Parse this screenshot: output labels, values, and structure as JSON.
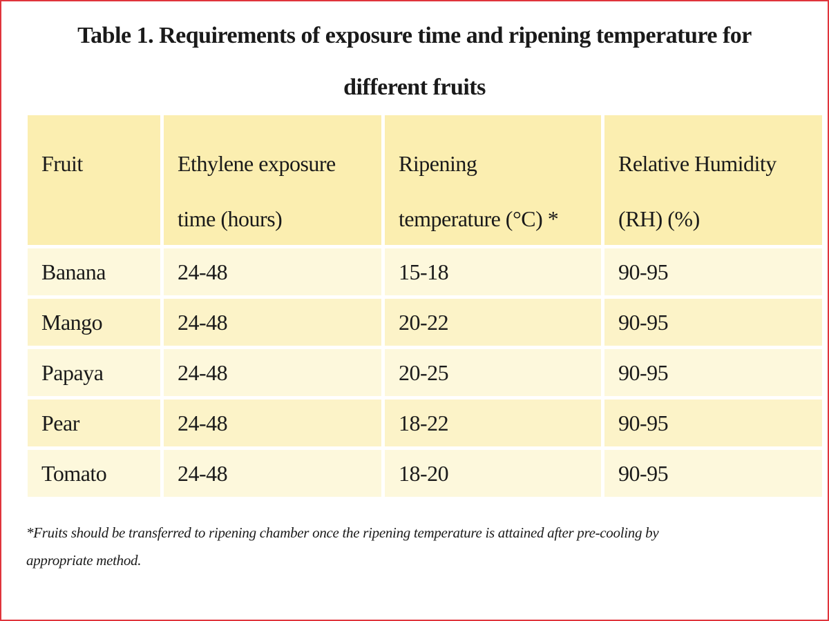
{
  "title": {
    "line1": "Table 1. Requirements of exposure time and ripening temperature for",
    "line2": "different fruits"
  },
  "table": {
    "headers": [
      "Fruit",
      "Ethylene exposure\ntime (hours)",
      "Ripening\ntemperature (°C) *",
      "Relative Humidity\n(RH) (%)"
    ],
    "rows": [
      [
        "Banana",
        "24-48",
        "15-18",
        "90-95"
      ],
      [
        "Mango",
        "24-48",
        "20-22",
        "90-95"
      ],
      [
        "Papaya",
        "24-48",
        "20-25",
        "90-95"
      ],
      [
        "Pear",
        "24-48",
        "18-22",
        "90-95"
      ],
      [
        "Tomato",
        "24-48",
        "18-20",
        "90-95"
      ]
    ]
  },
  "footnote": {
    "line1": "*Fruits should be transferred to ripening chamber once the ripening temperature is attained after pre-cooling by",
    "line2": "appropriate method."
  }
}
